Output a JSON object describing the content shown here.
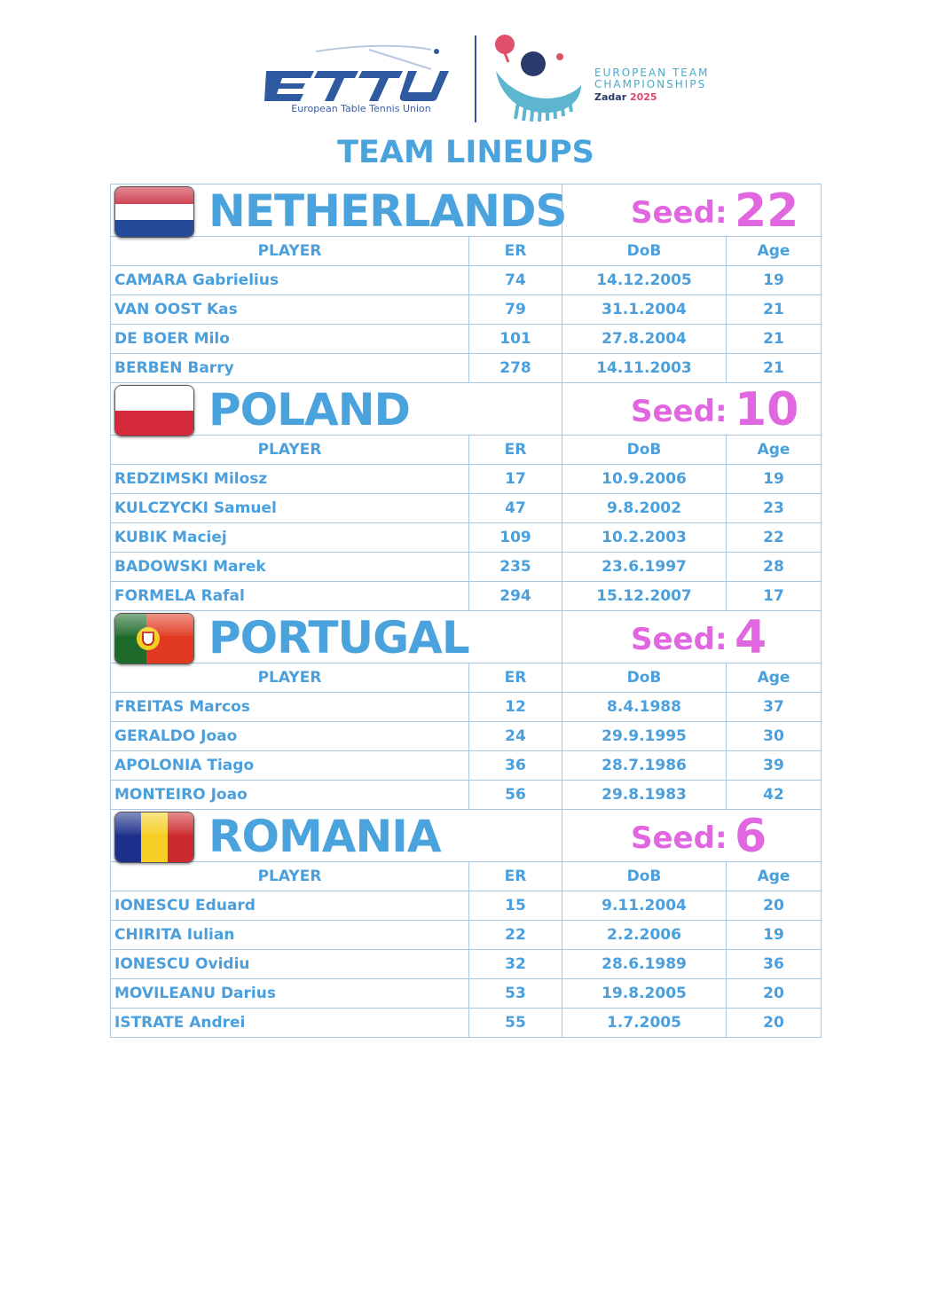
{
  "header": {
    "org_logo": "ETTU",
    "org_name": "European Table Tennis Union",
    "event_line1": "EUROPEAN TEAM",
    "event_line2": "CHAMPIONSHIPS",
    "event_city": "Zadar",
    "event_year": "2025",
    "title": "TEAM LINEUPS"
  },
  "columns": {
    "player": "PLAYER",
    "er": "ER",
    "dob": "DoB",
    "age": "Age"
  },
  "seed_label": "Seed:",
  "teams": [
    {
      "name": "NETHERLANDS",
      "seed": "22",
      "flag": "netherlands-flag",
      "players": [
        {
          "name": "CAMARA Gabrielius",
          "er": "74",
          "dob": "14.12.2005",
          "age": "19"
        },
        {
          "name": "VAN OOST Kas",
          "er": "79",
          "dob": "31.1.2004",
          "age": "21"
        },
        {
          "name": "DE BOER Milo",
          "er": "101",
          "dob": "27.8.2004",
          "age": "21"
        },
        {
          "name": "BERBEN Barry",
          "er": "278",
          "dob": "14.11.2003",
          "age": "21"
        }
      ]
    },
    {
      "name": "POLAND",
      "seed": "10",
      "flag": "poland-flag",
      "players": [
        {
          "name": "REDZIMSKI Milosz",
          "er": "17",
          "dob": "10.9.2006",
          "age": "19"
        },
        {
          "name": "KULCZYCKI Samuel",
          "er": "47",
          "dob": "9.8.2002",
          "age": "23"
        },
        {
          "name": "KUBIK Maciej",
          "er": "109",
          "dob": "10.2.2003",
          "age": "22"
        },
        {
          "name": "BADOWSKI Marek",
          "er": "235",
          "dob": "23.6.1997",
          "age": "28"
        },
        {
          "name": "FORMELA Rafal",
          "er": "294",
          "dob": "15.12.2007",
          "age": "17"
        }
      ]
    },
    {
      "name": "PORTUGAL",
      "seed": "4",
      "flag": "portugal-flag",
      "players": [
        {
          "name": "FREITAS Marcos",
          "er": "12",
          "dob": "8.4.1988",
          "age": "37"
        },
        {
          "name": "GERALDO Joao",
          "er": "24",
          "dob": "29.9.1995",
          "age": "30"
        },
        {
          "name": "APOLONIA Tiago",
          "er": "36",
          "dob": "28.7.1986",
          "age": "39"
        },
        {
          "name": "MONTEIRO Joao",
          "er": "56",
          "dob": "29.8.1983",
          "age": "42"
        }
      ]
    },
    {
      "name": "ROMANIA",
      "seed": "6",
      "flag": "romania-flag",
      "players": [
        {
          "name": "IONESCU Eduard",
          "er": "15",
          "dob": "9.11.2004",
          "age": "20"
        },
        {
          "name": "CHIRITA Iulian",
          "er": "22",
          "dob": "2.2.2006",
          "age": "19"
        },
        {
          "name": "IONESCU Ovidiu",
          "er": "32",
          "dob": "28.6.1989",
          "age": "36"
        },
        {
          "name": "MOVILEANU Darius",
          "er": "53",
          "dob": "19.8.2005",
          "age": "20"
        },
        {
          "name": "ISTRATE Andrei",
          "er": "55",
          "dob": "1.7.2005",
          "age": "20"
        }
      ]
    }
  ],
  "colors": {
    "text_blue": "#4aa3dc",
    "seed_pink": "#e067e0",
    "border": "#a9c8e6"
  }
}
